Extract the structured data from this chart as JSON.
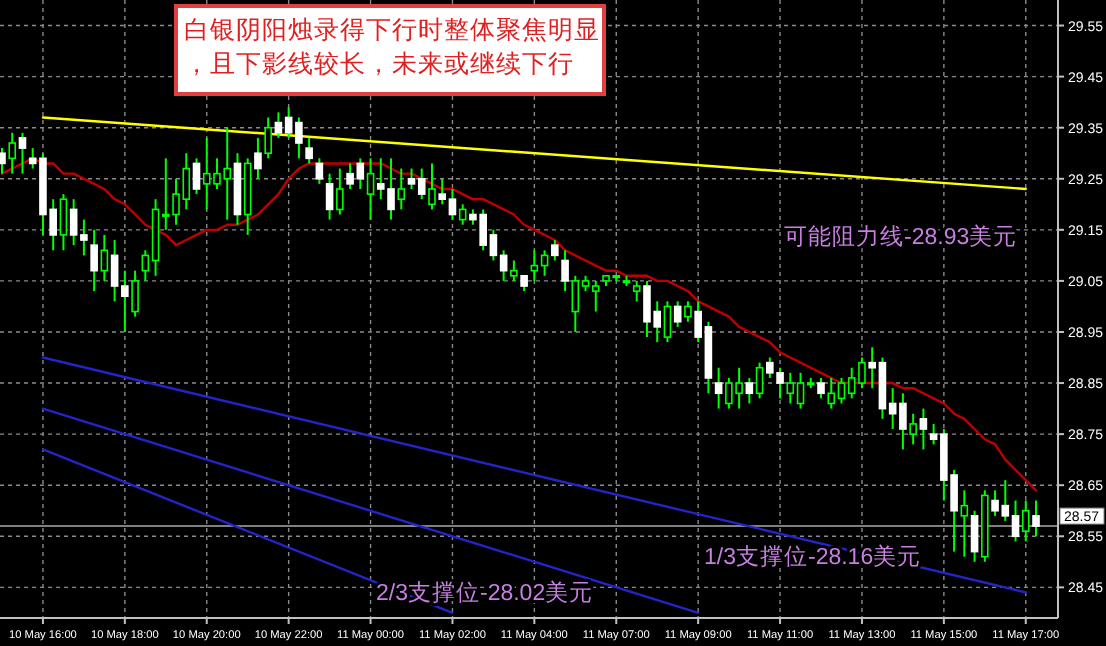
{
  "chart_data": {
    "type": "candlestick",
    "color": "#00ff00",
    "grid": true,
    "colors": [
      "#ffffff",
      "#00ff00",
      "#ffffff",
      "#ffffff",
      "#ffffff",
      "#ffffff",
      "#00ff00",
      "#ffffff",
      "#ffffff",
      "#ffffff",
      "#00ff00",
      "#ffffff",
      "#ffffff",
      "#00ff00",
      "#00ff00",
      "#00ff00",
      "#00ff00",
      "#00ff00",
      "#00ff00",
      "#ffffff",
      "#00ff00",
      "#00ff00",
      "#00ff00",
      "#ffffff",
      "#00ff00",
      "#ffffff",
      "#00ff00",
      "#ffffff",
      "#ffffff",
      "#ffffff",
      "#ffffff",
      "#ffffff",
      "#ffffff",
      "#00ff00",
      "#ffffff",
      "#ffffff",
      "#00ff00",
      "#ffffff",
      "#ffffff",
      "#00ff00",
      "#ffffff",
      "#ffffff",
      "#00ff00",
      "#ffffff",
      "#ffffff",
      "#00ff00",
      "#ffffff",
      "#ffffff",
      "#ffffff",
      "#ffffff",
      "#00ff00",
      "#ffffff",
      "#00ff00",
      "#00ff00",
      "#ffffff",
      "#ffffff",
      "#00ff00",
      "#00ff00",
      "#00ff00",
      "#00ff00",
      "#00ff00",
      "#00ff00",
      "#00ff00",
      "#ffffff",
      "#ffffff",
      "#00ff00",
      "#ffffff",
      "#00ff00",
      "#ffffff",
      "#ffffff",
      "#ffffff",
      "#00ff00",
      "#00ff00",
      "#ffffff",
      "#00ff00",
      "#ffffff",
      "#ffffff",
      "#00ff00",
      "#00ff00",
      "#00ff00",
      "#ffffff",
      "#00ff00",
      "#00ff00",
      "#00ff00",
      "#00ff00",
      "#ffffff",
      "#ffffff",
      "#ffffff",
      "#ffffff",
      "#00ff00",
      "#ffffff",
      "#ffffff",
      "#ffffff",
      "#ffffff",
      "#00ff00",
      "#ffffff",
      "#00ff00",
      "#ffffff",
      "#ffffff",
      "#ffffff",
      "#00ff00",
      "#ffffff"
    ],
    "categories": [
      null,
      null,
      null,
      null,
      "10 May 16:00",
      null,
      null,
      null,
      null,
      null,
      null,
      null,
      "10 May 18:00",
      null,
      null,
      null,
      null,
      null,
      null,
      null,
      "10 May 20:00",
      null,
      null,
      null,
      null,
      null,
      null,
      null,
      "10 May 22:00",
      null,
      null,
      null,
      null,
      null,
      null,
      null,
      "11 May 00:00",
      null,
      null,
      null,
      null,
      null,
      null,
      null,
      "11 May 02:00",
      null,
      null,
      null,
      null,
      null,
      null,
      null,
      "11 May 04:00",
      null,
      null,
      null,
      null,
      null,
      null,
      null,
      "11 May 07:00",
      null,
      null,
      null,
      null,
      null,
      null,
      null,
      "11 May 09:00",
      null,
      null,
      null,
      null,
      null,
      null,
      null,
      "11 May 11:00",
      null,
      null,
      null,
      null,
      null,
      null,
      null,
      "11 May 13:00",
      null,
      null,
      null,
      null,
      null,
      null,
      null,
      "11 May 15:00",
      null,
      null,
      null,
      null,
      null,
      null,
      null,
      "11 May 17:00",
      null
    ],
    "ohlc": [
      [
        29.3,
        29.31,
        29.26,
        29.28
      ],
      [
        29.29,
        29.34,
        29.26,
        29.32
      ],
      [
        29.33,
        29.34,
        29.26,
        29.31
      ],
      [
        29.29,
        29.31,
        29.27,
        29.28
      ],
      [
        29.29,
        29.3,
        29.14,
        29.18
      ],
      [
        29.19,
        29.21,
        29.11,
        29.14
      ],
      [
        29.14,
        29.22,
        29.11,
        29.21
      ],
      [
        29.19,
        29.21,
        29.12,
        29.14
      ],
      [
        29.14,
        29.17,
        29.1,
        29.13
      ],
      [
        29.12,
        29.15,
        29.03,
        29.07
      ],
      [
        29.07,
        29.14,
        29.05,
        29.11
      ],
      [
        29.1,
        29.13,
        29.01,
        29.04
      ],
      [
        29.04,
        29.07,
        28.95,
        29.02
      ],
      [
        28.99,
        29.07,
        28.98,
        29.05
      ],
      [
        29.07,
        29.11,
        29.05,
        29.1
      ],
      [
        29.09,
        29.21,
        29.06,
        29.19
      ],
      [
        29.18,
        29.29,
        29.15,
        29.18
      ],
      [
        29.18,
        29.25,
        29.16,
        29.22
      ],
      [
        29.21,
        29.3,
        29.19,
        29.27
      ],
      [
        29.28,
        29.29,
        29.22,
        29.23
      ],
      [
        29.24,
        29.33,
        29.19,
        29.26
      ],
      [
        29.24,
        29.29,
        29.23,
        29.26
      ],
      [
        29.25,
        29.35,
        29.17,
        29.27
      ],
      [
        29.28,
        29.3,
        29.16,
        29.18
      ],
      [
        29.18,
        29.29,
        29.14,
        29.28
      ],
      [
        29.3,
        29.33,
        29.25,
        29.27
      ],
      [
        29.3,
        29.37,
        29.29,
        29.35
      ],
      [
        29.36,
        29.38,
        29.33,
        29.34
      ],
      [
        29.37,
        29.39,
        29.33,
        29.34
      ],
      [
        29.36,
        29.37,
        29.29,
        29.32
      ],
      [
        29.31,
        29.33,
        29.28,
        29.29
      ],
      [
        29.28,
        29.29,
        29.24,
        29.25
      ],
      [
        29.24,
        29.26,
        29.17,
        29.19
      ],
      [
        29.19,
        29.27,
        29.18,
        29.23
      ],
      [
        29.26,
        29.28,
        29.23,
        29.24
      ],
      [
        29.28,
        29.29,
        29.23,
        29.25
      ],
      [
        29.22,
        29.29,
        29.17,
        29.26
      ],
      [
        29.24,
        29.29,
        29.21,
        29.23
      ],
      [
        29.23,
        29.29,
        29.17,
        29.19
      ],
      [
        29.21,
        29.27,
        29.19,
        29.23
      ],
      [
        29.25,
        29.27,
        29.23,
        29.24
      ],
      [
        29.25,
        29.27,
        29.21,
        29.22
      ],
      [
        29.2,
        29.28,
        29.19,
        29.23
      ],
      [
        29.22,
        29.25,
        29.2,
        29.21
      ],
      [
        29.21,
        29.23,
        29.17,
        29.18
      ],
      [
        29.17,
        29.2,
        29.16,
        29.19
      ],
      [
        29.18,
        29.19,
        29.16,
        29.17
      ],
      [
        29.18,
        29.19,
        29.11,
        29.12
      ],
      [
        29.14,
        29.15,
        29.09,
        29.1
      ],
      [
        29.1,
        29.11,
        29.05,
        29.07
      ],
      [
        29.06,
        29.09,
        29.05,
        29.07
      ],
      [
        29.06,
        29.06,
        29.03,
        29.04
      ],
      [
        29.07,
        29.11,
        29.05,
        29.08
      ],
      [
        29.08,
        29.11,
        29.06,
        29.1
      ],
      [
        29.12,
        29.13,
        29.09,
        29.1
      ],
      [
        29.09,
        29.11,
        29.03,
        29.05
      ],
      [
        28.99,
        29.06,
        28.95,
        29.05
      ],
      [
        29.04,
        29.06,
        29.03,
        29.05
      ],
      [
        29.03,
        29.05,
        28.99,
        29.04
      ],
      [
        29.05,
        29.06,
        29.04,
        29.06
      ],
      [
        29.06,
        29.06,
        29.05,
        29.06
      ],
      [
        29.05,
        29.06,
        29.04,
        29.05
      ],
      [
        29.03,
        29.05,
        29.01,
        29.04
      ],
      [
        29.04,
        29.05,
        28.94,
        28.97
      ],
      [
        28.99,
        29.01,
        28.93,
        28.96
      ],
      [
        28.94,
        29.01,
        28.93,
        29.0
      ],
      [
        29.0,
        29.01,
        28.96,
        28.97
      ],
      [
        28.98,
        29.01,
        28.97,
        29.0
      ],
      [
        28.99,
        29.01,
        28.93,
        28.94
      ],
      [
        28.96,
        28.97,
        28.83,
        28.86
      ],
      [
        28.85,
        28.88,
        28.8,
        28.83
      ],
      [
        28.81,
        28.86,
        28.8,
        28.85
      ],
      [
        28.83,
        28.88,
        28.8,
        28.85
      ],
      [
        28.85,
        28.86,
        28.81,
        28.83
      ],
      [
        28.83,
        28.89,
        28.82,
        28.88
      ],
      [
        28.89,
        28.9,
        28.86,
        28.87
      ],
      [
        28.87,
        28.88,
        28.82,
        28.85
      ],
      [
        28.83,
        28.87,
        28.81,
        28.85
      ],
      [
        28.81,
        28.87,
        28.8,
        28.85
      ],
      [
        28.85,
        28.86,
        28.84,
        28.85
      ],
      [
        28.85,
        28.86,
        28.82,
        28.83
      ],
      [
        28.81,
        28.86,
        28.8,
        28.83
      ],
      [
        28.82,
        28.86,
        28.81,
        28.85
      ],
      [
        28.83,
        28.88,
        28.82,
        28.86
      ],
      [
        28.85,
        28.9,
        28.84,
        28.89
      ],
      [
        28.89,
        28.92,
        28.84,
        28.88
      ],
      [
        28.89,
        28.9,
        28.78,
        28.8
      ],
      [
        28.81,
        28.84,
        28.76,
        28.79
      ],
      [
        28.81,
        28.83,
        28.72,
        28.76
      ],
      [
        28.75,
        28.79,
        28.73,
        28.77
      ],
      [
        28.78,
        28.8,
        28.72,
        28.76
      ],
      [
        28.75,
        28.77,
        28.73,
        28.74
      ],
      [
        28.75,
        28.76,
        28.62,
        28.66
      ],
      [
        28.67,
        28.68,
        28.52,
        28.6
      ],
      [
        28.59,
        28.64,
        28.51,
        28.61
      ],
      [
        28.59,
        28.6,
        28.5,
        28.52
      ],
      [
        28.51,
        28.64,
        28.5,
        28.63
      ],
      [
        28.62,
        28.64,
        28.59,
        28.6
      ],
      [
        28.61,
        28.66,
        28.58,
        28.59
      ],
      [
        28.59,
        28.62,
        28.54,
        28.55
      ],
      [
        28.56,
        28.62,
        28.54,
        28.6
      ],
      [
        28.59,
        28.62,
        28.55,
        28.57
      ]
    ],
    "series": [
      {
        "type": "line",
        "color": "#c00000",
        "values": [
          29.26,
          29.27,
          29.28,
          29.29,
          29.28,
          29.28,
          29.26,
          29.26,
          29.25,
          29.24,
          29.23,
          29.21,
          29.2,
          29.18,
          29.16,
          29.15,
          29.14,
          29.12,
          29.13,
          29.14,
          29.15,
          29.15,
          29.16,
          29.16,
          29.17,
          29.18,
          29.2,
          29.22,
          29.25,
          29.27,
          29.28,
          29.28,
          29.28,
          29.28,
          29.28,
          29.28,
          29.28,
          29.28,
          29.27,
          29.26,
          29.26,
          29.25,
          29.24,
          29.23,
          29.23,
          29.22,
          29.21,
          29.21,
          29.2,
          29.19,
          29.18,
          29.16,
          29.15,
          29.14,
          29.13,
          29.11,
          29.1,
          29.09,
          29.08,
          29.07,
          29.07,
          29.06,
          29.06,
          29.06,
          29.05,
          29.05,
          29.04,
          29.03,
          29.01,
          29.0,
          28.99,
          28.98,
          28.96,
          28.95,
          28.94,
          28.93,
          28.91,
          28.9,
          28.89,
          28.88,
          28.87,
          28.86,
          28.85,
          28.85,
          28.85,
          28.85,
          28.85,
          28.85,
          28.84,
          28.84,
          28.83,
          28.82,
          28.81,
          28.79,
          28.78,
          28.76,
          28.74,
          28.73,
          28.7,
          28.68,
          28.66,
          28.64
        ]
      },
      {
        "type": "line",
        "color": "#ffff00",
        "x": [
          "10 May 16:00",
          "11 May 17:00"
        ],
        "values": [
          29.37,
          29.23
        ]
      },
      {
        "type": "line",
        "color": "#2424c8",
        "x": [
          "10 May 16:00",
          "11 May 17:00"
        ],
        "values": [
          28.9,
          28.44
        ]
      },
      {
        "type": "line",
        "color": "#2424c8",
        "x": [
          "10 May 16:00",
          "11 May 09:00"
        ],
        "values": [
          28.8,
          28.4
        ]
      },
      {
        "type": "line",
        "color": "#2424c8",
        "x": [
          "10 May 16:00",
          "11 May 02:00"
        ],
        "values": [
          28.72,
          28.4
        ]
      }
    ],
    "ref_lines": [
      {
        "axis": "y",
        "value": 28.57,
        "label": "28.57",
        "color": "#808080"
      }
    ],
    "ylim": [
      28.39,
      29.6
    ],
    "yticks": [
      28.45,
      28.55,
      28.65,
      28.75,
      28.85,
      28.95,
      29.05,
      29.15,
      29.25,
      29.35,
      29.45,
      29.55
    ],
    "annotations": [
      "白银阴阳烛录得下行时整体聚焦明显，且下影线较长，未来或继续下行",
      "可能阻力线-28.93美元",
      "1/3支撑位-28.16美元",
      "2/3支撑位-28.02美元"
    ]
  }
}
